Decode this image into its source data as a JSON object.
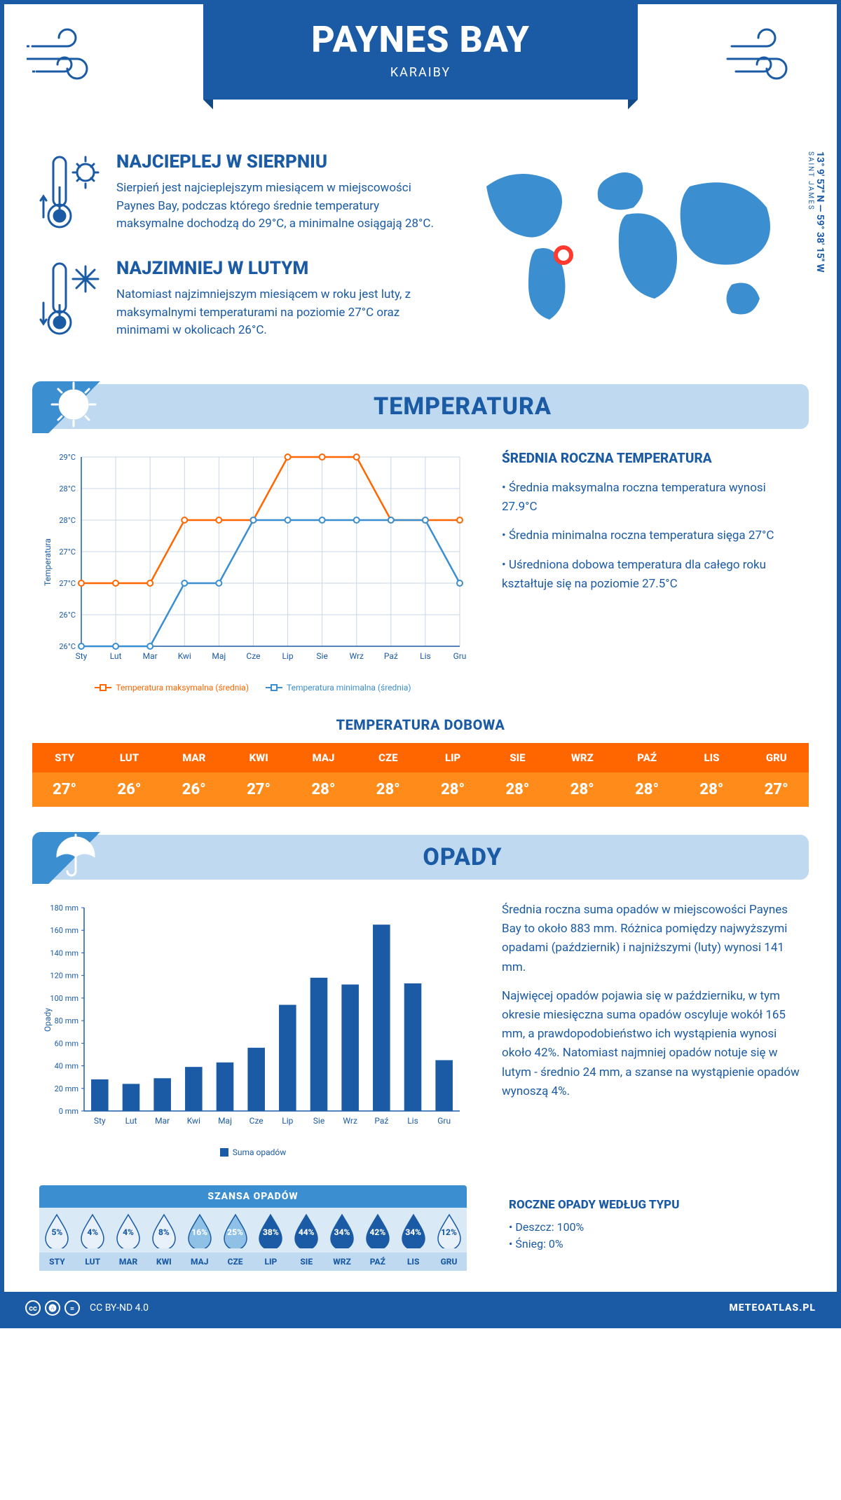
{
  "header": {
    "title": "PAYNES BAY",
    "subtitle": "KARAIBY"
  },
  "coords": {
    "text": "13° 9' 57'' N — 59° 38' 15'' W",
    "region": "SAINT JAMES"
  },
  "warmest": {
    "title": "NAJCIEPLEJ W SIERPNIU",
    "text": "Sierpień jest najcieplejszym miesiącem w miejscowości Paynes Bay, podczas którego średnie temperatury maksymalne dochodzą do 29°C, a minimalne osiągają 28°C."
  },
  "coldest": {
    "title": "NAJZIMNIEJ W LUTYM",
    "text": "Natomiast najzimniejszym miesiącem w roku jest luty, z maksymalnymi temperaturami na poziomie 27°C oraz minimami w okolicach 26°C."
  },
  "temp_section_title": "TEMPERATURA",
  "precip_section_title": "OPADY",
  "months": [
    "Sty",
    "Lut",
    "Mar",
    "Kwi",
    "Maj",
    "Cze",
    "Lip",
    "Sie",
    "Wrz",
    "Paź",
    "Lis",
    "Gru"
  ],
  "months_upper": [
    "STY",
    "LUT",
    "MAR",
    "KWI",
    "MAJ",
    "CZE",
    "LIP",
    "SIE",
    "WRZ",
    "PAŹ",
    "LIS",
    "GRU"
  ],
  "temp_chart": {
    "type": "line",
    "ylabel": "Temperatura",
    "ylim": [
      26,
      29
    ],
    "yticks": [
      "26°C",
      "26°C",
      "27°C",
      "27°C",
      "28°C",
      "28°C",
      "29°C"
    ],
    "ytick_vals": [
      26,
      26.5,
      27,
      27.5,
      28,
      28.5,
      29
    ],
    "grid_color": "#c9d7e6",
    "series": [
      {
        "name": "Temperatura maksymalna (średnia)",
        "color": "#ff6600",
        "values": [
          27,
          27,
          27,
          28,
          28,
          28,
          29,
          29,
          29,
          28,
          28,
          28
        ]
      },
      {
        "name": "Temperatura minimalna (średnia)",
        "color": "#3b8ecf",
        "values": [
          26,
          26,
          26,
          27,
          27,
          28,
          28,
          28,
          28,
          28,
          28,
          27
        ]
      }
    ]
  },
  "temp_side": {
    "title": "ŚREDNIA ROCZNA TEMPERATURA",
    "b1": "• Średnia maksymalna roczna temperatura wynosi 27.9°C",
    "b2": "• Średnia minimalna roczna temperatura sięga 27°C",
    "b3": "• Uśredniona dobowa temperatura dla całego roku kształtuje się na poziomie 27.5°C"
  },
  "daily_title": "TEMPERATURA DOBOWA",
  "daily_values": [
    "27°",
    "26°",
    "26°",
    "27°",
    "28°",
    "28°",
    "28°",
    "28°",
    "28°",
    "28°",
    "28°",
    "27°"
  ],
  "daily_colors": {
    "head": "#ff6600",
    "body": "#ff8c1a"
  },
  "precip_chart": {
    "type": "bar",
    "ylabel": "Opady",
    "ylim": [
      0,
      180
    ],
    "ytick_step": 20,
    "yticks_labels": [
      "0 mm",
      "20 mm",
      "40 mm",
      "60 mm",
      "80 mm",
      "100 mm",
      "120 mm",
      "140 mm",
      "160 mm",
      "180 mm"
    ],
    "bar_color": "#1b5ba5",
    "legend": "Suma opadów",
    "values": [
      28,
      24,
      29,
      39,
      43,
      56,
      94,
      118,
      112,
      165,
      113,
      45
    ]
  },
  "precip_side": {
    "p1": "Średnia roczna suma opadów w miejscowości Paynes Bay to około 883 mm. Różnica pomiędzy najwyższymi opadami (październik) i najniższymi (luty) wynosi 141 mm.",
    "p2": "Najwięcej opadów pojawia się w październiku, w tym okresie miesięczna suma opadów oscyluje wokół 165 mm, a prawdopodobieństwo ich wystąpienia wynosi około 42%. Natomiast najmniej opadów notuje się w lutym - średnio 24 mm, a szanse na wystąpienie opadów wynoszą 4%."
  },
  "precip_chance": {
    "title": "SZANSA OPADÓW",
    "values": [
      "5%",
      "4%",
      "4%",
      "8%",
      "16%",
      "25%",
      "38%",
      "44%",
      "34%",
      "42%",
      "34%",
      "12%"
    ],
    "shade_idx": [
      1,
      1,
      1,
      1,
      2,
      2,
      3,
      3,
      3,
      3,
      3,
      1
    ],
    "shade_colors": {
      "1": "#e8f1fa",
      "2": "#8fc1e6",
      "3": "#1b5ba5"
    },
    "text_colors": {
      "1": "#1b5ba5",
      "2": "#fff",
      "3": "#fff"
    }
  },
  "precip_type": {
    "title": "ROCZNE OPADY WEDŁUG TYPU",
    "l1": "• Deszcz: 100%",
    "l2": "• Śnieg: 0%"
  },
  "footer": {
    "license": "CC BY-ND 4.0",
    "site": "METEOATLAS.PL"
  }
}
